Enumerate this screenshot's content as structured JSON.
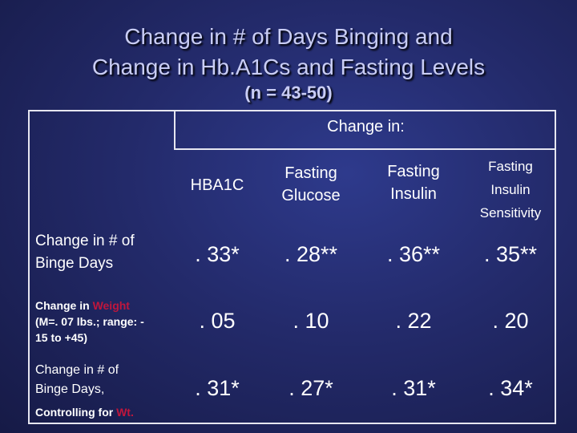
{
  "title": {
    "line1": "Change in # of Days Binging and",
    "line2": "Change in Hb.A1Cs and Fasting Levels",
    "subtitle": "(n = 43-50)"
  },
  "table": {
    "header": "Change in:",
    "columns": [
      {
        "line1": "HBA1C"
      },
      {
        "line1": "Fasting",
        "line2": "Glucose"
      },
      {
        "line1": "Fasting",
        "line2": "Insulin"
      },
      {
        "line1": "Fasting",
        "line2": "Insulin",
        "line3": "Sensitivity"
      }
    ],
    "rows": [
      {
        "label_line1": "Change in # of",
        "label_line2": "Binge Days",
        "values": [
          ". 33*",
          ". 28**",
          ". 36**",
          ". 35**"
        ]
      },
      {
        "label_prefix": "Change in ",
        "label_highlight": "Weight",
        "label_line2": "(M=. 07 lbs.; range: -",
        "label_line3": "15 to +45)",
        "values": [
          ". 05",
          ". 10",
          ". 22",
          ". 20"
        ]
      },
      {
        "label_line1": "Change in # of",
        "label_line2": "Binge Days,",
        "label_line3_prefix": "Controlling for ",
        "label_line3_highlight": "Wt.",
        "values": [
          ". 31*",
          ". 27*",
          ". 31*",
          ". 34*"
        ]
      }
    ]
  },
  "colors": {
    "background": "#232a6a",
    "title": "#c9cdf5",
    "highlight": "#c0163c",
    "text": "#ffffff"
  }
}
